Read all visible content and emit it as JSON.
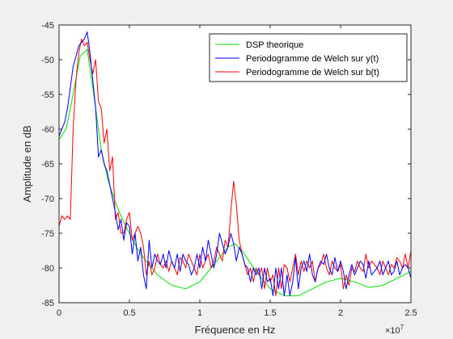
{
  "chart_data": {
    "type": "line",
    "title": "",
    "xlabel": "Fréquence en Hz",
    "ylabel": "Amplitude en dB",
    "x_multiplier_label": "×10",
    "x_multiplier_exp": "7",
    "xlim": [
      0,
      2.5
    ],
    "ylim": [
      -85,
      -45
    ],
    "x_ticks": [
      0,
      0.5,
      1,
      1.5,
      2,
      2.5
    ],
    "x_tick_labels": [
      "0",
      "0.5",
      "1",
      "1.5",
      "2",
      "2.5"
    ],
    "y_ticks": [
      -85,
      -80,
      -75,
      -70,
      -65,
      -60,
      -55,
      -50,
      -45
    ],
    "y_tick_labels": [
      "-85",
      "-80",
      "-75",
      "-70",
      "-65",
      "-60",
      "-55",
      "-50",
      "-45"
    ],
    "grid": false,
    "legend_position": "top-right",
    "series": [
      {
        "name": "DSP theorique",
        "color": "#00e000",
        "x": [
          0,
          0.05,
          0.1,
          0.15,
          0.2,
          0.25,
          0.3,
          0.35,
          0.4,
          0.45,
          0.5,
          0.55,
          0.6,
          0.7,
          0.8,
          0.9,
          1.0,
          1.1,
          1.2,
          1.25,
          1.3,
          1.4,
          1.5,
          1.6,
          1.7,
          1.8,
          1.9,
          2.0,
          2.1,
          2.2,
          2.3,
          2.4,
          2.5
        ],
        "y": [
          -61.5,
          -60,
          -55,
          -49.5,
          -48.5,
          -55.5,
          -63,
          -67.5,
          -70.5,
          -73,
          -75,
          -77,
          -78.5,
          -81,
          -82.5,
          -83,
          -82,
          -79.5,
          -77,
          -76.5,
          -77.5,
          -80.5,
          -83,
          -84,
          -84,
          -83,
          -82,
          -81.5,
          -82,
          -82.8,
          -82.5,
          -81.5,
          -80.5
        ]
      },
      {
        "name": "Periodogramme de Welch sur y(t)",
        "color": "#0000ff",
        "x": [
          0,
          0.02,
          0.04,
          0.06,
          0.08,
          0.1,
          0.12,
          0.14,
          0.16,
          0.18,
          0.2,
          0.22,
          0.24,
          0.26,
          0.28,
          0.3,
          0.32,
          0.34,
          0.36,
          0.38,
          0.4,
          0.42,
          0.44,
          0.46,
          0.48,
          0.5,
          0.52,
          0.54,
          0.56,
          0.58,
          0.6,
          0.62,
          0.64,
          0.66,
          0.68,
          0.7,
          0.72,
          0.74,
          0.76,
          0.78,
          0.8,
          0.82,
          0.84,
          0.86,
          0.88,
          0.9,
          0.92,
          0.94,
          0.96,
          0.98,
          1.0,
          1.02,
          1.04,
          1.06,
          1.08,
          1.1,
          1.12,
          1.14,
          1.16,
          1.18,
          1.2,
          1.22,
          1.24,
          1.26,
          1.28,
          1.3,
          1.32,
          1.34,
          1.36,
          1.38,
          1.4,
          1.42,
          1.44,
          1.46,
          1.48,
          1.5,
          1.52,
          1.54,
          1.56,
          1.58,
          1.6,
          1.62,
          1.64,
          1.66,
          1.68,
          1.7,
          1.72,
          1.74,
          1.76,
          1.78,
          1.8,
          1.82,
          1.84,
          1.86,
          1.88,
          1.9,
          1.92,
          1.94,
          1.96,
          1.98,
          2.0,
          2.02,
          2.04,
          2.06,
          2.08,
          2.1,
          2.12,
          2.14,
          2.16,
          2.18,
          2.2,
          2.22,
          2.24,
          2.26,
          2.28,
          2.3,
          2.32,
          2.34,
          2.36,
          2.38,
          2.4,
          2.42,
          2.44,
          2.46,
          2.48,
          2.5
        ],
        "y": [
          -61,
          -60,
          -59,
          -57,
          -54,
          -51,
          -49.5,
          -48,
          -47.5,
          -47,
          -46,
          -49,
          -53,
          -57,
          -64,
          -63,
          -65,
          -66,
          -68,
          -70,
          -72,
          -74.5,
          -73,
          -76,
          -73.5,
          -74,
          -78,
          -75,
          -79,
          -77,
          -81,
          -83,
          -76,
          -80,
          -78,
          -79,
          -79.5,
          -78,
          -80,
          -77.5,
          -79,
          -80,
          -78,
          -80.5,
          -78,
          -79,
          -79.5,
          -81,
          -80,
          -78,
          -80,
          -77,
          -79,
          -76,
          -78,
          -80,
          -78,
          -75,
          -76.5,
          -78,
          -77,
          -75,
          -76.5,
          -79,
          -77,
          -78,
          -79.5,
          -80,
          -82,
          -80,
          -81,
          -80,
          -83,
          -80,
          -82,
          -81.5,
          -84,
          -80,
          -83,
          -80,
          -84,
          -81,
          -84,
          -82,
          -78.5,
          -83,
          -80,
          -79,
          -80.5,
          -78,
          -81,
          -82,
          -80,
          -79,
          -79.5,
          -78,
          -80,
          -81,
          -78.5,
          -80.5,
          -79,
          -80.5,
          -83,
          -81,
          -79.5,
          -81,
          -80,
          -79,
          -79.5,
          -81.5,
          -79,
          -81,
          -80.5,
          -80,
          -79,
          -81,
          -80,
          -79,
          -81,
          -80.5,
          -79,
          -81,
          -80,
          -79.5,
          -80,
          -81.5
        ]
      },
      {
        "name": "Periodogramme de Welch sur b(t)",
        "color": "#ff0000",
        "x": [
          0,
          0.02,
          0.04,
          0.06,
          0.08,
          0.1,
          0.12,
          0.14,
          0.16,
          0.18,
          0.2,
          0.22,
          0.24,
          0.26,
          0.28,
          0.3,
          0.32,
          0.34,
          0.36,
          0.38,
          0.4,
          0.42,
          0.44,
          0.46,
          0.48,
          0.5,
          0.52,
          0.54,
          0.56,
          0.58,
          0.6,
          0.62,
          0.64,
          0.66,
          0.68,
          0.7,
          0.72,
          0.74,
          0.76,
          0.78,
          0.8,
          0.82,
          0.84,
          0.86,
          0.88,
          0.9,
          0.92,
          0.94,
          0.96,
          0.98,
          1.0,
          1.02,
          1.04,
          1.06,
          1.08,
          1.1,
          1.12,
          1.14,
          1.16,
          1.18,
          1.2,
          1.22,
          1.24,
          1.26,
          1.28,
          1.3,
          1.32,
          1.34,
          1.36,
          1.38,
          1.4,
          1.42,
          1.44,
          1.46,
          1.48,
          1.5,
          1.52,
          1.54,
          1.56,
          1.58,
          1.6,
          1.62,
          1.64,
          1.66,
          1.68,
          1.7,
          1.72,
          1.74,
          1.76,
          1.78,
          1.8,
          1.82,
          1.84,
          1.86,
          1.88,
          1.9,
          1.92,
          1.94,
          1.96,
          1.98,
          2.0,
          2.02,
          2.04,
          2.06,
          2.08,
          2.1,
          2.12,
          2.14,
          2.16,
          2.18,
          2.2,
          2.22,
          2.24,
          2.26,
          2.28,
          2.3,
          2.32,
          2.34,
          2.36,
          2.38,
          2.4,
          2.42,
          2.44,
          2.46,
          2.48,
          2.5
        ],
        "y": [
          -74,
          -72.5,
          -73,
          -72.5,
          -73,
          -60,
          -53,
          -49,
          -47,
          -48,
          -47.5,
          -50,
          -52,
          -50,
          -56,
          -57,
          -62,
          -60,
          -66,
          -64,
          -73,
          -72,
          -75,
          -75,
          -73,
          -72,
          -76,
          -75,
          -74,
          -75,
          -77,
          -81,
          -79,
          -81,
          -80,
          -78,
          -79.5,
          -80,
          -79,
          -80.5,
          -79,
          -80,
          -81,
          -78.5,
          -79,
          -80,
          -78,
          -79,
          -80,
          -81,
          -78,
          -80,
          -79,
          -78,
          -80,
          -79,
          -77,
          -78,
          -79,
          -76,
          -77,
          -72,
          -67.5,
          -71,
          -76,
          -78,
          -79.5,
          -81,
          -80,
          -82,
          -80,
          -81,
          -80,
          -83,
          -80,
          -82,
          -81,
          -84,
          -80,
          -83,
          -79.5,
          -80,
          -82,
          -80,
          -78,
          -81,
          -79,
          -80.5,
          -79,
          -80,
          -79,
          -82,
          -80,
          -79.5,
          -78,
          -80,
          -81,
          -79,
          -80,
          -80.5,
          -79.5,
          -83,
          -81,
          -82.5,
          -80,
          -80.5,
          -79,
          -80,
          -80.5,
          -78,
          -80,
          -79,
          -79.5,
          -80,
          -81,
          -79,
          -80,
          -81,
          -79.5,
          -80,
          -78.5,
          -79,
          -80,
          -78,
          -80,
          -77.5
        ]
      }
    ]
  }
}
